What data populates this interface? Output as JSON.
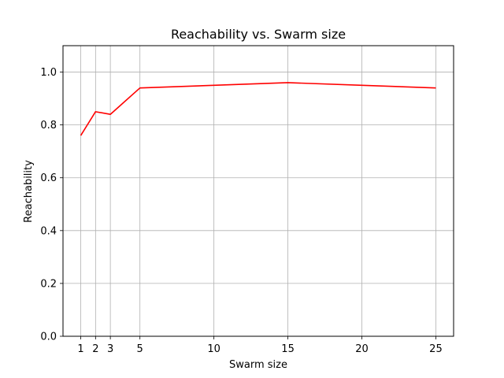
{
  "chart_data": {
    "type": "line",
    "title": "Reachability vs. Swarm size",
    "xlabel": "Swarm size",
    "ylabel": "Reachability",
    "x_ticks": [
      1,
      2,
      3,
      5,
      10,
      15,
      20,
      25
    ],
    "y_ticks": [
      0.0,
      0.2,
      0.4,
      0.6,
      0.8,
      1.0
    ],
    "xlim": [
      -0.2,
      26.2
    ],
    "ylim": [
      0.0,
      1.1
    ],
    "grid": true,
    "series": [
      {
        "color": "#ff0000",
        "x": [
          1,
          2,
          3,
          5,
          10,
          15,
          20,
          25
        ],
        "y": [
          0.76,
          0.85,
          0.84,
          0.94,
          0.95,
          0.96,
          0.95,
          0.94
        ]
      }
    ]
  }
}
